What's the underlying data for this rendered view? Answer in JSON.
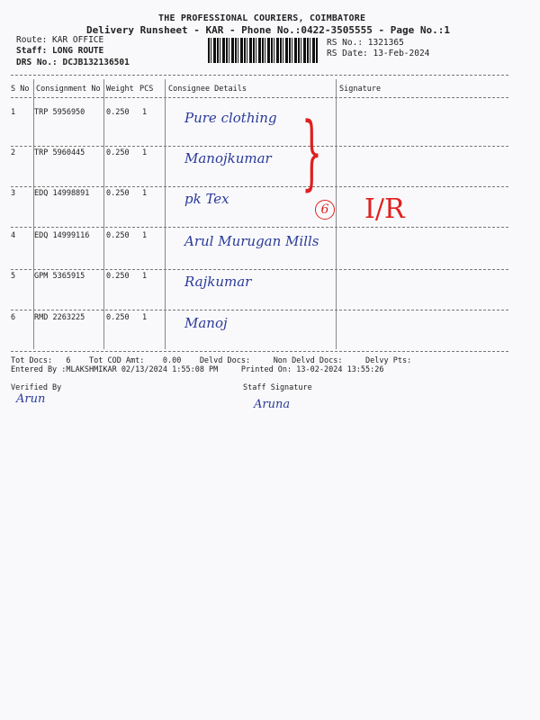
{
  "header": {
    "company": "THE PROFESSIONAL COURIERS, COIMBATORE",
    "title": "Delivery Runsheet - KAR - Phone No.:0422-3505555 - Page No.:1",
    "route": "Route: KAR OFFICE",
    "staff": "Staff: LONG ROUTE",
    "drs": "DRS No.: DCJB132136501",
    "rs_no": "RS No.: 1321365",
    "rs_date": "RS Date: 13-Feb-2024"
  },
  "table": {
    "headers": [
      "S No",
      "Consignment No",
      "Weight",
      "PCS",
      "Consignee Details",
      "Signature"
    ],
    "rows": [
      {
        "sno": "1",
        "cno": "TRP 5956950",
        "weight": "0.250",
        "pcs": "1",
        "consignee": "Pure clothing"
      },
      {
        "sno": "2",
        "cno": "TRP 5960445",
        "weight": "0.250",
        "pcs": "1",
        "consignee": "Manojkumar"
      },
      {
        "sno": "3",
        "cno": "EDQ 14998891",
        "weight": "0.250",
        "pcs": "1",
        "consignee": "pk Tex"
      },
      {
        "sno": "4",
        "cno": "EDQ 14999116",
        "weight": "0.250",
        "pcs": "1",
        "consignee": "Arul Murugan Mills"
      },
      {
        "sno": "5",
        "cno": "GPM 5365915",
        "weight": "0.250",
        "pcs": "1",
        "consignee": "Rajkumar"
      },
      {
        "sno": "6",
        "cno": "RMD 2263225",
        "weight": "0.250",
        "pcs": "1",
        "consignee": "Manoj"
      }
    ]
  },
  "annotations": {
    "count": "6",
    "mark": "I/R",
    "color": "#e02020"
  },
  "footer": {
    "totals": "Tot Docs:   6    Tot COD Amt:    0.00    Delvd Docs:     Non Delvd Docs:     Delvy Pts:",
    "entered": "Entered By :MLAKSHMIKAR 02/13/2024 1:55:08 PM     Printed On: 13-02-2024 13:55:26",
    "verified_by": "Verified By",
    "staff_signature": "Staff Signature",
    "verified_sig": "Arun",
    "staff_sig": "Aruna"
  }
}
